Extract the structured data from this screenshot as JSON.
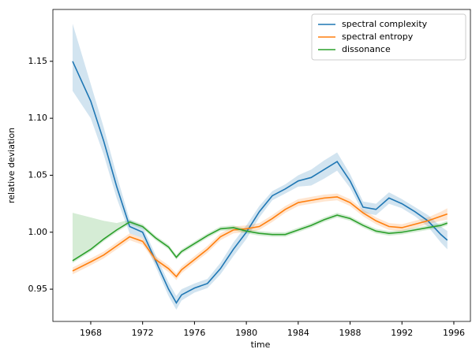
{
  "chart_data": {
    "type": "line",
    "xlabel": "time",
    "ylabel": "relative deviation",
    "x": [
      1966.6,
      1968,
      1969,
      1970,
      1971,
      1972,
      1973,
      1974,
      1974.6,
      1975,
      1976,
      1977,
      1978,
      1979,
      1980,
      1981,
      1982,
      1983,
      1984,
      1985,
      1986,
      1987,
      1988,
      1989,
      1990,
      1991,
      1992,
      1993,
      1994,
      1995,
      1995.5
    ],
    "series": [
      {
        "name": "spectral complexity",
        "color": "#1f77b4",
        "values": [
          1.15,
          1.115,
          1.08,
          1.04,
          1.005,
          1.0,
          0.975,
          0.95,
          0.938,
          0.945,
          0.951,
          0.955,
          0.968,
          0.985,
          1.0,
          1.018,
          1.032,
          1.038,
          1.045,
          1.048,
          1.055,
          1.062,
          1.045,
          1.022,
          1.02,
          1.03,
          1.025,
          1.018,
          1.01,
          0.998,
          0.993
        ],
        "lower": [
          1.124,
          1.1,
          1.068,
          1.03,
          0.999,
          0.995,
          0.97,
          0.944,
          0.932,
          0.94,
          0.947,
          0.951,
          0.963,
          0.979,
          0.994,
          1.013,
          1.028,
          1.034,
          1.04,
          1.041,
          1.047,
          1.054,
          1.039,
          1.017,
          1.015,
          1.025,
          1.021,
          1.014,
          1.005,
          0.991,
          0.985
        ],
        "upper": [
          1.183,
          1.13,
          1.092,
          1.05,
          1.011,
          1.005,
          0.98,
          0.956,
          0.944,
          0.95,
          0.955,
          0.959,
          0.973,
          0.991,
          1.006,
          1.023,
          1.036,
          1.042,
          1.05,
          1.055,
          1.063,
          1.07,
          1.051,
          1.027,
          1.025,
          1.035,
          1.029,
          1.022,
          1.015,
          1.005,
          1.001
        ]
      },
      {
        "name": "spectral entropy",
        "color": "#ff7f0e",
        "values": [
          0.966,
          0.974,
          0.98,
          0.988,
          0.996,
          0.992,
          0.976,
          0.968,
          0.961,
          0.967,
          0.976,
          0.985,
          0.996,
          1.002,
          1.003,
          1.005,
          1.012,
          1.02,
          1.026,
          1.028,
          1.03,
          1.031,
          1.026,
          1.017,
          1.01,
          1.005,
          1.004,
          1.007,
          1.01,
          1.014,
          1.016
        ],
        "lower": [
          0.963,
          0.971,
          0.977,
          0.985,
          0.993,
          0.989,
          0.973,
          0.965,
          0.958,
          0.964,
          0.973,
          0.982,
          0.993,
          0.999,
          1.0,
          1.002,
          1.009,
          1.017,
          1.023,
          1.025,
          1.027,
          1.028,
          1.023,
          1.014,
          1.007,
          1.002,
          1.001,
          1.004,
          1.007,
          1.01,
          1.011
        ],
        "upper": [
          0.969,
          0.977,
          0.983,
          0.991,
          0.999,
          0.995,
          0.979,
          0.971,
          0.964,
          0.97,
          0.979,
          0.988,
          0.999,
          1.005,
          1.006,
          1.008,
          1.015,
          1.023,
          1.029,
          1.031,
          1.033,
          1.034,
          1.029,
          1.02,
          1.013,
          1.008,
          1.007,
          1.01,
          1.013,
          1.018,
          1.021
        ]
      },
      {
        "name": "dissonance",
        "color": "#2ca02c",
        "values": [
          0.975,
          0.985,
          0.994,
          1.002,
          1.009,
          1.005,
          0.995,
          0.987,
          0.978,
          0.983,
          0.99,
          0.997,
          1.003,
          1.004,
          1.001,
          0.999,
          0.998,
          0.998,
          1.002,
          1.006,
          1.011,
          1.015,
          1.012,
          1.006,
          1.001,
          0.999,
          1.0,
          1.002,
          1.004,
          1.006,
          1.008
        ],
        "lower": [
          0.973,
          0.983,
          0.992,
          1.0,
          1.007,
          1.003,
          0.993,
          0.985,
          0.976,
          0.981,
          0.988,
          0.995,
          1.001,
          1.002,
          0.999,
          0.997,
          0.996,
          0.996,
          1.0,
          1.004,
          1.009,
          1.013,
          1.01,
          1.004,
          0.999,
          0.997,
          0.998,
          1.0,
          1.002,
          1.004,
          1.006
        ],
        "upper": [
          1.017,
          1.013,
          1.01,
          1.008,
          1.011,
          1.007,
          0.997,
          0.989,
          0.98,
          0.985,
          0.992,
          0.999,
          1.005,
          1.006,
          1.003,
          1.001,
          1.0,
          1.0,
          1.004,
          1.008,
          1.013,
          1.017,
          1.014,
          1.008,
          1.003,
          1.001,
          1.002,
          1.004,
          1.006,
          1.008,
          1.01
        ]
      }
    ],
    "xlim": [
      1965.08,
      1997.28
    ],
    "ylim": [
      0.9217,
      1.1955
    ],
    "xticks": [
      1968,
      1972,
      1976,
      1980,
      1984,
      1988,
      1992,
      1996
    ],
    "yticks": [
      0.95,
      {
        "value": 1,
        "label": "1.00"
      },
      1.05,
      {
        "value": 1.1,
        "label": "1.10"
      },
      1.15
    ],
    "legend": "upper right",
    "grid": false
  }
}
